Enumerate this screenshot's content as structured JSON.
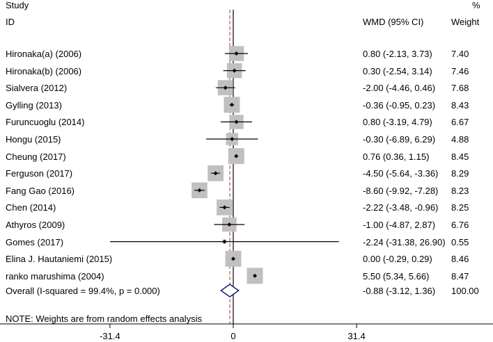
{
  "header": {
    "study_line1": "Study",
    "study_line2": "ID",
    "wmd_label": "WMD (95% CI)",
    "pct_line1": "%",
    "pct_line2": "Weight"
  },
  "note": "NOTE: Weights are from random effects analysis",
  "chart_data": {
    "type": "forest",
    "title": "",
    "measure": "WMD (95% CI)",
    "x_ticks": [
      -31.4,
      0,
      31.4
    ],
    "x_tick_labels": [
      "-31.4",
      "0",
      "31.4"
    ],
    "xlim": [
      -31.4,
      31.4
    ],
    "null_value": 0,
    "studies": [
      {
        "id": "Hironaka(a) (2006)",
        "wmd": 0.8,
        "lower": -2.13,
        "upper": 3.73,
        "ci_text": "0.80 (-2.13, 3.73)",
        "weight": 7.4,
        "weight_text": "7.40"
      },
      {
        "id": "Hironaka(b) (2006)",
        "wmd": 0.3,
        "lower": -2.54,
        "upper": 3.14,
        "ci_text": "0.30 (-2.54, 3.14)",
        "weight": 7.46,
        "weight_text": "7.46"
      },
      {
        "id": "Sialvera (2012)",
        "wmd": -2.0,
        "lower": -4.46,
        "upper": 0.46,
        "ci_text": "-2.00 (-4.46, 0.46)",
        "weight": 7.68,
        "weight_text": "7.68"
      },
      {
        "id": "Gylling (2013)",
        "wmd": -0.36,
        "lower": -0.95,
        "upper": 0.23,
        "ci_text": "-0.36 (-0.95, 0.23)",
        "weight": 8.43,
        "weight_text": "8.43"
      },
      {
        "id": "Furuncuoglu (2014)",
        "wmd": 0.8,
        "lower": -3.19,
        "upper": 4.79,
        "ci_text": "0.80 (-3.19, 4.79)",
        "weight": 6.67,
        "weight_text": "6.67"
      },
      {
        "id": "Hongu (2015)",
        "wmd": -0.3,
        "lower": -6.89,
        "upper": 6.29,
        "ci_text": "-0.30 (-6.89, 6.29)",
        "weight": 4.88,
        "weight_text": "4.88"
      },
      {
        "id": "Cheung (2017)",
        "wmd": 0.76,
        "lower": 0.36,
        "upper": 1.15,
        "ci_text": "0.76 (0.36, 1.15)",
        "weight": 8.45,
        "weight_text": "8.45"
      },
      {
        "id": "Ferguson (2017)",
        "wmd": -4.5,
        "lower": -5.64,
        "upper": -3.36,
        "ci_text": "-4.50 (-5.64, -3.36)",
        "weight": 8.29,
        "weight_text": "8.29"
      },
      {
        "id": "Fang Gao (2016)",
        "wmd": -8.6,
        "lower": -9.92,
        "upper": -7.28,
        "ci_text": "-8.60 (-9.92, -7.28)",
        "weight": 8.23,
        "weight_text": "8.23"
      },
      {
        "id": "Chen (2014)",
        "wmd": -2.22,
        "lower": -3.48,
        "upper": -0.96,
        "ci_text": "-2.22 (-3.48, -0.96)",
        "weight": 8.25,
        "weight_text": "8.25"
      },
      {
        "id": "Athyros (2009)",
        "wmd": -1.0,
        "lower": -4.87,
        "upper": 2.87,
        "ci_text": "-1.00 (-4.87, 2.87)",
        "weight": 6.76,
        "weight_text": "6.76"
      },
      {
        "id": "Gomes (2017)",
        "wmd": -2.24,
        "lower": -31.38,
        "upper": 26.9,
        "ci_text": "-2.24 (-31.38, 26.90)",
        "weight": 0.55,
        "weight_text": "0.55"
      },
      {
        "id": "Elina J. Hautaniemi (2015)",
        "wmd": 0.0,
        "lower": -0.29,
        "upper": 0.29,
        "ci_text": "0.00 (-0.29, 0.29)",
        "weight": 8.46,
        "weight_text": "8.46"
      },
      {
        "id": "ranko marushima (2004)",
        "wmd": 5.5,
        "lower": 5.34,
        "upper": 5.66,
        "ci_text": "5.50 (5.34, 5.66)",
        "weight": 8.47,
        "weight_text": "8.47"
      }
    ],
    "overall": {
      "id": "Overall  (I-squared = 99.4%, p = 0.000)",
      "wmd": -0.88,
      "lower": -3.12,
      "upper": 1.36,
      "ci_text": "-0.88 (-3.12, 1.36)",
      "weight_text": "100.00"
    },
    "colors": {
      "box": "#c0c0c0",
      "line": "#000000",
      "diamond": "#1a1a6e",
      "overall_line": "#b03030"
    }
  }
}
